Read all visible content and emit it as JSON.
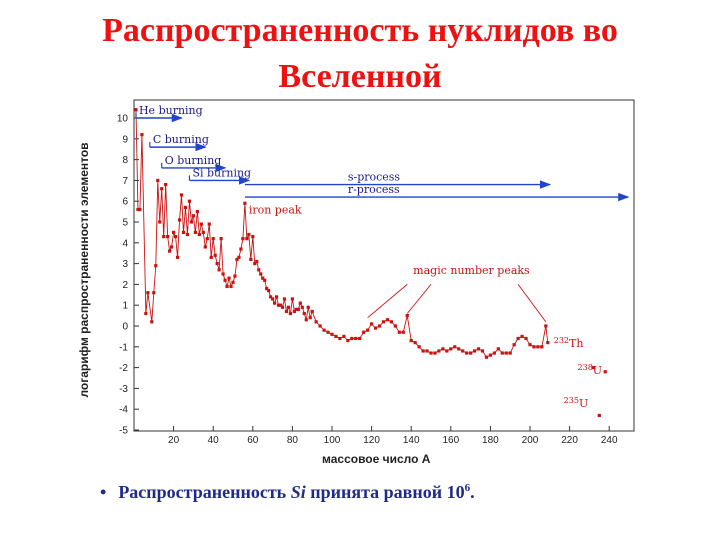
{
  "title_lines": [
    "Распространенность нуклидов во",
    "Вселенной"
  ],
  "bullet": {
    "symbol": "•",
    "text_before": "Распространенность ",
    "element": "Si",
    "text_after": " принята равной 10",
    "exponent": "6",
    "end": "."
  },
  "colors": {
    "title": "#ee1111",
    "bullet": "#1f2a8a",
    "data": "#cc1111",
    "arrows": "#2244cc"
  },
  "chart_data": {
    "type": "scatter",
    "xlabel": "массовое число A",
    "ylabel": "логарифм распространенности элементов",
    "xlim": [
      0,
      250
    ],
    "ylim": [
      -5,
      11
    ],
    "xticks": [
      20,
      40,
      60,
      80,
      100,
      120,
      140,
      160,
      180,
      200,
      220,
      240
    ],
    "yticks": [
      10,
      9,
      8,
      7,
      6,
      5,
      4,
      3,
      2,
      1,
      0,
      -1,
      -2,
      -3,
      -4,
      -5
    ],
    "series": [
      {
        "points": [
          [
            1,
            10.4
          ],
          [
            2,
            5.6
          ],
          [
            3,
            5.6
          ],
          [
            4,
            9.2
          ],
          [
            6,
            0.6
          ],
          [
            7,
            1.6
          ],
          [
            9,
            0.2
          ],
          [
            10,
            1.6
          ],
          [
            11,
            2.9
          ],
          [
            12,
            7.0
          ],
          [
            13,
            5.0
          ],
          [
            14,
            6.6
          ],
          [
            15,
            4.3
          ],
          [
            16,
            6.8
          ],
          [
            17,
            4.3
          ],
          [
            18,
            3.6
          ],
          [
            19,
            3.8
          ],
          [
            20,
            4.5
          ],
          [
            21,
            4.3
          ],
          [
            22,
            3.3
          ],
          [
            23,
            5.1
          ],
          [
            24,
            6.3
          ],
          [
            25,
            4.5
          ],
          [
            26,
            5.7
          ],
          [
            27,
            4.4
          ],
          [
            28,
            6.0
          ],
          [
            29,
            5.0
          ],
          [
            30,
            5.3
          ],
          [
            31,
            4.5
          ],
          [
            32,
            5.5
          ],
          [
            33,
            4.4
          ],
          [
            34,
            4.9
          ],
          [
            35,
            4.5
          ],
          [
            36,
            3.8
          ],
          [
            37,
            4.2
          ],
          [
            38,
            4.9
          ],
          [
            39,
            3.3
          ],
          [
            40,
            4.2
          ],
          [
            41,
            3.4
          ],
          [
            42,
            3.0
          ],
          [
            43,
            2.7
          ],
          [
            44,
            4.2
          ],
          [
            45,
            2.5
          ],
          [
            46,
            2.2
          ],
          [
            47,
            1.9
          ],
          [
            48,
            2.3
          ],
          [
            49,
            1.9
          ],
          [
            50,
            2.1
          ],
          [
            51,
            2.4
          ],
          [
            52,
            3.2
          ],
          [
            53,
            3.3
          ],
          [
            54,
            3.7
          ],
          [
            55,
            4.2
          ],
          [
            56,
            5.9
          ],
          [
            57,
            4.2
          ],
          [
            58,
            4.4
          ],
          [
            59,
            3.2
          ],
          [
            60,
            4.3
          ],
          [
            61,
            3.0
          ],
          [
            62,
            3.1
          ],
          [
            63,
            2.7
          ],
          [
            64,
            2.5
          ],
          [
            65,
            2.3
          ],
          [
            66,
            2.2
          ],
          [
            67,
            1.8
          ],
          [
            68,
            1.7
          ],
          [
            69,
            1.4
          ],
          [
            70,
            1.3
          ],
          [
            71,
            1.1
          ],
          [
            72,
            1.4
          ],
          [
            73,
            1.0
          ],
          [
            74,
            1.0
          ],
          [
            75,
            0.9
          ],
          [
            76,
            1.3
          ],
          [
            77,
            0.7
          ],
          [
            78,
            0.9
          ],
          [
            79,
            0.6
          ],
          [
            80,
            1.3
          ],
          [
            81,
            0.7
          ],
          [
            82,
            0.8
          ],
          [
            83,
            0.8
          ],
          [
            84,
            1.1
          ],
          [
            85,
            0.9
          ],
          [
            86,
            0.6
          ],
          [
            87,
            0.3
          ],
          [
            88,
            0.9
          ],
          [
            89,
            0.4
          ],
          [
            90,
            0.7
          ],
          [
            92,
            0.2
          ],
          [
            94,
            0.0
          ],
          [
            96,
            -0.2
          ],
          [
            98,
            -0.3
          ],
          [
            100,
            -0.4
          ],
          [
            102,
            -0.5
          ],
          [
            104,
            -0.6
          ],
          [
            106,
            -0.5
          ],
          [
            108,
            -0.7
          ],
          [
            110,
            -0.6
          ],
          [
            112,
            -0.6
          ],
          [
            114,
            -0.6
          ],
          [
            116,
            -0.3
          ],
          [
            118,
            -0.2
          ],
          [
            120,
            0.1
          ],
          [
            122,
            -0.1
          ],
          [
            124,
            0.0
          ],
          [
            126,
            0.2
          ],
          [
            128,
            0.3
          ],
          [
            130,
            0.2
          ],
          [
            132,
            0.0
          ],
          [
            134,
            -0.3
          ],
          [
            136,
            -0.3
          ],
          [
            138,
            0.5
          ],
          [
            140,
            -0.7
          ],
          [
            142,
            -0.8
          ],
          [
            144,
            -1.0
          ],
          [
            146,
            -1.2
          ],
          [
            148,
            -1.2
          ],
          [
            150,
            -1.3
          ],
          [
            152,
            -1.3
          ],
          [
            154,
            -1.2
          ],
          [
            156,
            -1.1
          ],
          [
            158,
            -1.2
          ],
          [
            160,
            -1.1
          ],
          [
            162,
            -1.0
          ],
          [
            164,
            -1.1
          ],
          [
            166,
            -1.2
          ],
          [
            168,
            -1.3
          ],
          [
            170,
            -1.3
          ],
          [
            172,
            -1.2
          ],
          [
            174,
            -1.1
          ],
          [
            176,
            -1.2
          ],
          [
            178,
            -1.5
          ],
          [
            180,
            -1.4
          ],
          [
            182,
            -1.3
          ],
          [
            184,
            -1.1
          ],
          [
            186,
            -1.3
          ],
          [
            188,
            -1.3
          ],
          [
            190,
            -1.3
          ],
          [
            192,
            -0.9
          ],
          [
            194,
            -0.6
          ],
          [
            196,
            -0.5
          ],
          [
            198,
            -0.6
          ],
          [
            200,
            -0.9
          ],
          [
            202,
            -1.0
          ],
          [
            204,
            -1.0
          ],
          [
            206,
            -1.0
          ],
          [
            208,
            0.0
          ],
          [
            209,
            -0.8
          ],
          [
            232,
            -2.0
          ],
          [
            238,
            -2.2
          ],
          [
            235,
            -4.3
          ]
        ]
      }
    ],
    "arrows": [
      {
        "label": "He burning",
        "x_start": 1,
        "x_end": 24,
        "y": 10.0
      },
      {
        "label": "C burning",
        "x_start": 8,
        "x_end": 36,
        "y": 8.6
      },
      {
        "label": "O burning",
        "x_start": 14,
        "x_end": 46,
        "y": 7.6
      },
      {
        "label": "Si burning",
        "x_start": 28,
        "x_end": 58,
        "y": 7.0
      },
      {
        "label": "s-process",
        "x_start": 56,
        "x_end": 210,
        "y": 6.8
      },
      {
        "label": "r-process",
        "x_start": 56,
        "x_end": 250,
        "y": 6.2
      }
    ],
    "annotations": [
      {
        "text": "iron peak"
      },
      {
        "text": "magic number peaks"
      }
    ],
    "isotope_labels": [
      {
        "mass": "232",
        "symbol": "Th"
      },
      {
        "mass": "238",
        "symbol": "U"
      },
      {
        "mass": "235",
        "symbol": "U"
      }
    ]
  }
}
